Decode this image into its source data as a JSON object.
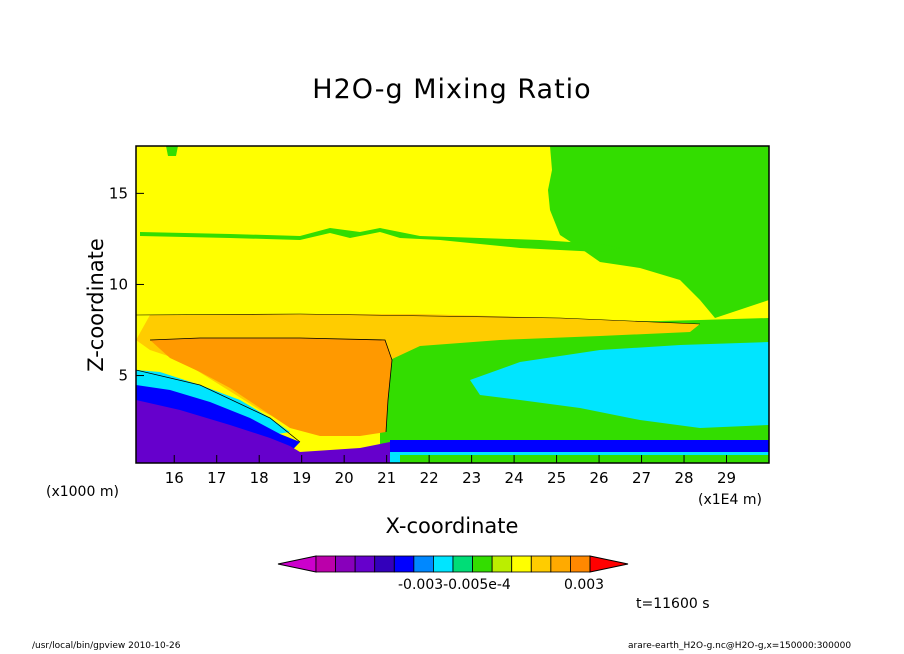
{
  "chart_data": {
    "type": "heatmap",
    "title": "H2O-g Mixing Ratio",
    "xlabel": "X-coordinate",
    "ylabel": "Z-coordinate",
    "x_unit_label": "(x1E4 m)",
    "y_unit_label": "(x1000 m)",
    "xlim": [
      15.1,
      30
    ],
    "ylim": [
      0.2,
      17.6
    ],
    "x_ticks": [
      "16",
      "17",
      "18",
      "19",
      "20",
      "21",
      "22",
      "23",
      "24",
      "25",
      "26",
      "27",
      "28",
      "29"
    ],
    "x_tick_values": [
      16,
      17,
      18,
      19,
      20,
      21,
      22,
      23,
      24,
      25,
      26,
      27,
      28,
      29
    ],
    "y_ticks": [
      "5",
      "10",
      "15"
    ],
    "y_tick_values": [
      5,
      10,
      15
    ],
    "regions": [
      {
        "name": "background",
        "color": "#ffff00"
      },
      {
        "name": "upper-right green",
        "color": "#33dd00"
      },
      {
        "name": "mid orange band",
        "color": "#ff9900",
        "z_range": [
          6.4,
          8.4
        ]
      },
      {
        "name": "lower layer",
        "color": "#ffcc00"
      },
      {
        "name": "right cyan region",
        "color": "#00e5ff",
        "x_range": [
          24,
          30
        ],
        "z_range": [
          2,
          6.5
        ]
      },
      {
        "name": "left blue/purple low layer",
        "color": "#6600cc"
      }
    ],
    "colorbar": {
      "colors": [
        "#cc00cc",
        "#bb00aa",
        "#8800bb",
        "#6600cc",
        "#3300bb",
        "#0000ff",
        "#0088ff",
        "#00e5ff",
        "#00dd77",
        "#33dd00",
        "#bbee00",
        "#ffff00",
        "#ffcc00",
        "#ffaa00",
        "#ff8800",
        "#ff0000"
      ],
      "labels": [
        "-0.003",
        "-0.005e-4",
        "0.003"
      ]
    },
    "time_label": "t=11600 s"
  },
  "colorbar_text": {
    "label_left": "-0.003-0.005e-4",
    "label_right": "0.003"
  },
  "footer": {
    "left": "/usr/local/bin/gpview  2010-10-26",
    "right": "arare-earth_H2O-g.nc@H2O-g,x=150000:300000"
  }
}
